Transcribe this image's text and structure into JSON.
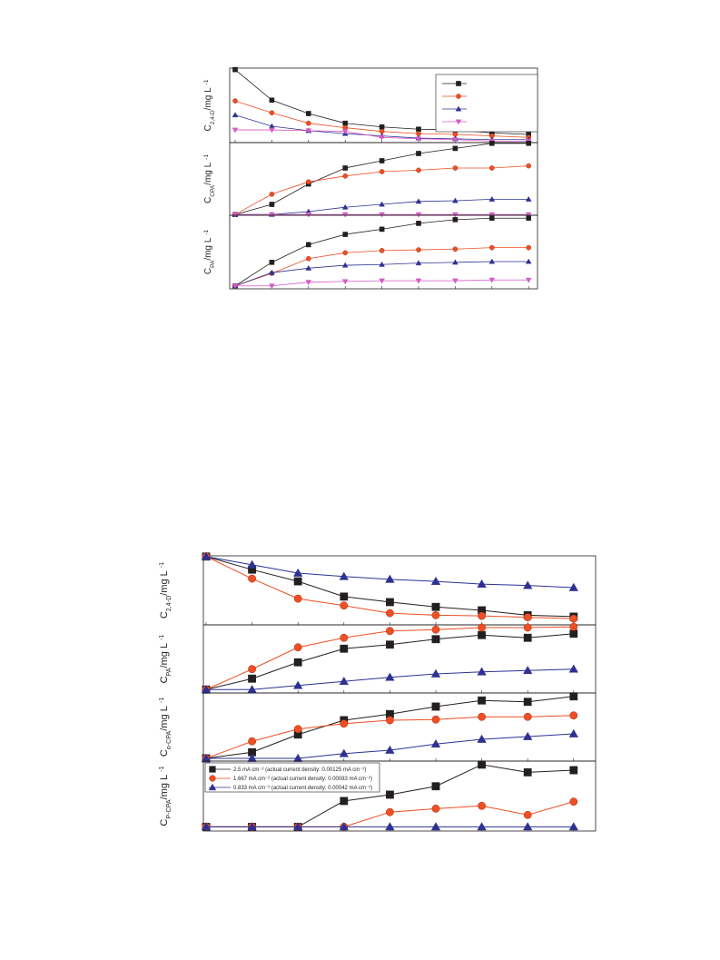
{
  "chart_data": [
    {
      "type": "line",
      "ylabel": [
        "C",
        "2,4-D",
        "/mg L",
        "-1"
      ],
      "categories": [
        null,
        null,
        null,
        null,
        null,
        null,
        null,
        null,
        null
      ],
      "ylim": [
        0,
        100
      ],
      "legend": "upper right",
      "series": [
        {
          "color": "#231f20",
          "marker": "square",
          "values": [
            98,
            57,
            39,
            26,
            21,
            18,
            17,
            13,
            11
          ]
        },
        {
          "color": "#f04e23",
          "marker": "circle",
          "values": [
            56,
            40,
            26,
            20,
            15,
            12,
            11,
            9,
            7
          ]
        },
        {
          "color": "#2e3192",
          "marker": "triangle-up",
          "values": [
            37,
            22,
            16,
            12,
            9,
            6,
            5,
            4,
            4
          ]
        },
        {
          "color": "#d65ac7",
          "marker": "triangle-down",
          "values": [
            17,
            17,
            16,
            15,
            7,
            5,
            4,
            2,
            2
          ]
        }
      ]
    },
    {
      "type": "line",
      "ylabel": [
        "C",
        "CPA",
        "/mg L",
        "-1"
      ],
      "categories": [
        null,
        null,
        null,
        null,
        null,
        null,
        null,
        null,
        null
      ],
      "ylim": [
        0,
        100
      ],
      "series": [
        {
          "color": "#231f20",
          "marker": "square",
          "values": [
            1,
            15,
            43,
            65,
            75,
            85,
            92,
            99,
            99
          ]
        },
        {
          "color": "#f04e23",
          "marker": "circle",
          "values": [
            1,
            29,
            46,
            54,
            60,
            62,
            65,
            65,
            68
          ]
        },
        {
          "color": "#2e3192",
          "marker": "triangle-up",
          "values": [
            1,
            1,
            5,
            11,
            15,
            19,
            20,
            22,
            22
          ]
        },
        {
          "color": "#d65ac7",
          "marker": "triangle-down",
          "values": [
            1,
            1,
            1,
            1,
            1,
            1,
            1,
            1,
            1
          ]
        }
      ]
    },
    {
      "type": "line",
      "ylabel": [
        "C",
        "PA",
        "/mg L",
        "-1"
      ],
      "categories": [
        null,
        null,
        null,
        null,
        null,
        null,
        null,
        null,
        null
      ],
      "ylim": [
        0,
        100
      ],
      "series": [
        {
          "color": "#231f20",
          "marker": "square",
          "values": [
            4,
            36,
            60,
            74,
            81,
            89,
            94,
            96,
            96
          ]
        },
        {
          "color": "#f04e23",
          "marker": "circle",
          "values": [
            4,
            21,
            41,
            49,
            52,
            53,
            54,
            56,
            56
          ]
        },
        {
          "color": "#2e3192",
          "marker": "triangle-up",
          "values": [
            4,
            22,
            28,
            32,
            33,
            35,
            36,
            37,
            37
          ]
        },
        {
          "color": "#d65ac7",
          "marker": "triangle-down",
          "values": [
            4,
            4,
            9,
            10,
            11,
            11,
            11,
            12,
            12
          ]
        }
      ]
    },
    {
      "type": "line",
      "ylabel": [
        "C",
        "2,4-D",
        "/mg L",
        "-1"
      ],
      "categories": [
        null,
        null,
        null,
        null,
        null,
        null,
        null,
        null,
        null
      ],
      "ylim": [
        0,
        100
      ],
      "series": [
        {
          "color": "#231f20",
          "marker": "square",
          "values": [
            99,
            80,
            63,
            41,
            33,
            26,
            21,
            14,
            12
          ]
        },
        {
          "color": "#f04e23",
          "marker": "circle",
          "values": [
            99,
            67,
            38,
            28,
            17,
            14,
            13,
            11,
            9
          ]
        },
        {
          "color": "#2e3192",
          "marker": "triangle-up",
          "values": [
            99,
            87,
            75,
            70,
            66,
            63,
            59,
            57,
            54
          ]
        }
      ]
    },
    {
      "type": "line",
      "ylabel": [
        "C",
        "PA",
        "/mg L",
        "-1"
      ],
      "categories": [
        null,
        null,
        null,
        null,
        null,
        null,
        null,
        null,
        null
      ],
      "ylim": [
        0,
        100
      ],
      "series": [
        {
          "color": "#231f20",
          "marker": "square",
          "values": [
            5,
            21,
            45,
            65,
            71,
            79,
            85,
            81,
            87
          ]
        },
        {
          "color": "#f04e23",
          "marker": "circle",
          "values": [
            5,
            35,
            67,
            81,
            91,
            93,
            96,
            96,
            97
          ]
        },
        {
          "color": "#2e3192",
          "marker": "triangle-up",
          "values": [
            5,
            5,
            11,
            17,
            23,
            28,
            31,
            33,
            35
          ]
        }
      ]
    },
    {
      "type": "line",
      "ylabel": [
        "C",
        "o-CPA",
        "/mg L",
        "-1"
      ],
      "categories": [
        null,
        null,
        null,
        null,
        null,
        null,
        null,
        null,
        null
      ],
      "ylim": [
        0,
        100
      ],
      "series": [
        {
          "color": "#231f20",
          "marker": "square",
          "values": [
            4,
            13,
            39,
            60,
            69,
            80,
            89,
            87,
            95
          ]
        },
        {
          "color": "#f04e23",
          "marker": "circle",
          "values": [
            4,
            29,
            47,
            55,
            60,
            61,
            65,
            65,
            67
          ]
        },
        {
          "color": "#2e3192",
          "marker": "triangle-up",
          "values": [
            4,
            4,
            4,
            11,
            16,
            25,
            32,
            36,
            40
          ]
        }
      ]
    },
    {
      "type": "line",
      "ylabel": [
        "C",
        "P-CPA",
        "/mg L",
        "-1"
      ],
      "categories": [
        null,
        null,
        null,
        null,
        null,
        null,
        null,
        null,
        null
      ],
      "ylim": [
        0,
        100
      ],
      "legend": "upper left",
      "series": [
        {
          "name": "2.5 mA cm⁻² (actual current density: 0.00125 mA cm⁻²)",
          "color": "#231f20",
          "marker": "square",
          "values": [
            6,
            6,
            6,
            43,
            52,
            64,
            95,
            84,
            87
          ]
        },
        {
          "name": "1.667 mA cm⁻² (actual current density: 0.00083 mA cm⁻²)",
          "color": "#f04e23",
          "marker": "circle",
          "values": [
            6,
            6,
            6,
            6,
            27,
            32,
            36,
            23,
            42
          ]
        },
        {
          "name": "0.833 mA cm⁻² (actual current density: 0.00042 mA cm⁻²)",
          "color": "#2e3192",
          "marker": "triangle-up",
          "values": [
            6,
            6,
            6,
            6,
            6,
            6,
            6,
            6,
            6
          ]
        }
      ]
    }
  ]
}
